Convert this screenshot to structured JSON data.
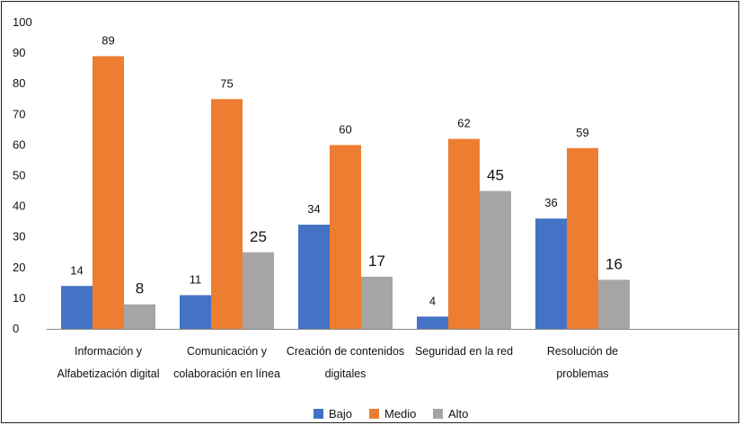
{
  "chart_data": {
    "type": "bar",
    "title": "",
    "xlabel": "",
    "ylabel": "",
    "ylim": [
      0,
      100
    ],
    "yticks": [
      0,
      10,
      20,
      30,
      40,
      50,
      60,
      70,
      80,
      90,
      100
    ],
    "grid": false,
    "legend_position": "bottom",
    "categories": [
      [
        "Información y",
        "Alfabetización digital"
      ],
      [
        "Comunicación y",
        "colaboración en línea"
      ],
      [
        "Creación de contenidos",
        "digitales"
      ],
      [
        "Seguridad en la red"
      ],
      [
        "Resolución de",
        "problemas"
      ]
    ],
    "series": [
      {
        "name": "Bajo",
        "color": "#4472c4",
        "values": [
          14,
          11,
          34,
          4,
          36
        ]
      },
      {
        "name": "Medio",
        "color": "#ed7d31",
        "values": [
          89,
          75,
          60,
          62,
          59
        ]
      },
      {
        "name": "Alto",
        "color": "#a5a5a5",
        "values": [
          8,
          25,
          17,
          45,
          16
        ]
      }
    ]
  }
}
